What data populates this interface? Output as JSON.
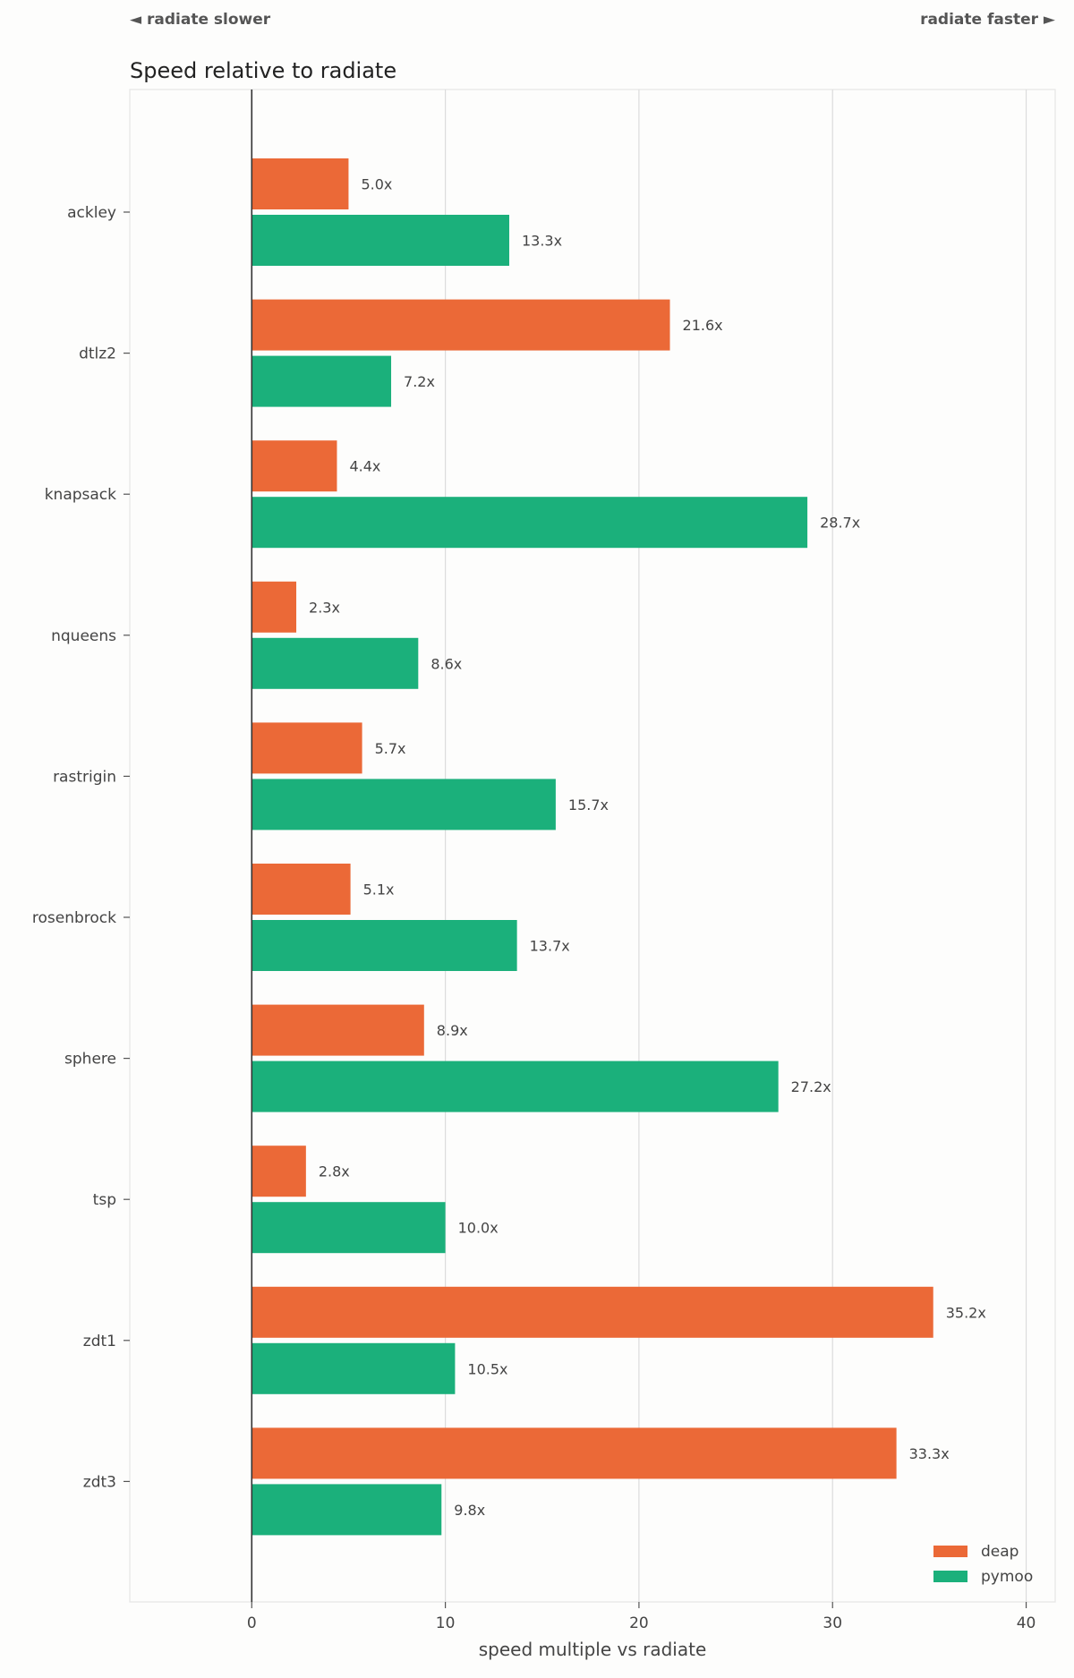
{
  "header": {
    "left_hint": "◄ radiate slower",
    "right_hint": "radiate faster ►"
  },
  "chart_data": {
    "type": "bar",
    "orientation": "horizontal",
    "title": "Speed relative to radiate",
    "xlabel": "speed multiple vs radiate",
    "ylabel": "",
    "xlim": [
      -6.3,
      41.5
    ],
    "xticks": [
      0,
      10,
      20,
      30,
      40
    ],
    "grid": true,
    "legend_position": "bottom-right",
    "categories": [
      "ackley",
      "dtlz2",
      "knapsack",
      "nqueens",
      "rastrigin",
      "rosenbrock",
      "sphere",
      "tsp",
      "zdt1",
      "zdt3"
    ],
    "series": [
      {
        "name": "deap",
        "color": "#eb6937",
        "values": [
          5.0,
          21.6,
          4.4,
          2.3,
          5.7,
          5.1,
          8.9,
          2.8,
          35.2,
          33.3
        ],
        "labels": [
          "5.0x",
          "21.6x",
          "4.4x",
          "2.3x",
          "5.7x",
          "5.1x",
          "8.9x",
          "2.8x",
          "35.2x",
          "33.3x"
        ]
      },
      {
        "name": "pymoo",
        "color": "#1bb07b",
        "values": [
          13.3,
          7.2,
          28.7,
          8.6,
          15.7,
          13.7,
          27.2,
          10.0,
          10.5,
          9.8
        ],
        "labels": [
          "13.3x",
          "7.2x",
          "28.7x",
          "8.6x",
          "15.7x",
          "13.7x",
          "27.2x",
          "10.0x",
          "10.5x",
          "9.8x"
        ]
      }
    ]
  }
}
